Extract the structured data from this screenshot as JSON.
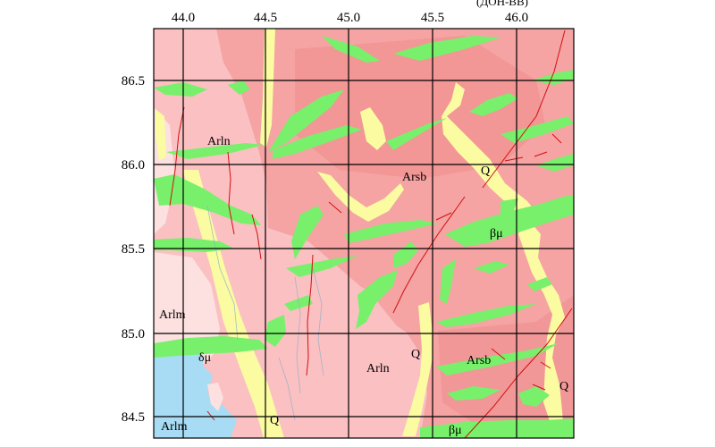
{
  "header": {
    "cropped_text": "(ДОН-ВВ)"
  },
  "axes": {
    "x_ticks": [
      "44.0",
      "44.5",
      "45.0",
      "45.5",
      "46.0"
    ],
    "y_ticks": [
      "86.5",
      "86.0",
      "85.5",
      "85.0",
      "84.5"
    ]
  },
  "units": [
    {
      "id": "arln-nw",
      "text": "Arln"
    },
    {
      "id": "arsb-n",
      "text": "Arsb"
    },
    {
      "id": "q-ne",
      "text": "Q"
    },
    {
      "id": "bu-e",
      "text": "βμ"
    },
    {
      "id": "arlm-w",
      "text": "Arlm"
    },
    {
      "id": "du-sw",
      "text": "δμ"
    },
    {
      "id": "arln-s",
      "text": "Arln"
    },
    {
      "id": "q-s",
      "text": "Q"
    },
    {
      "id": "arsb-se",
      "text": "Arsb"
    },
    {
      "id": "q-se",
      "text": "Q"
    },
    {
      "id": "arlm-sw",
      "text": "Arlm"
    },
    {
      "id": "q-bottom",
      "text": "Q"
    },
    {
      "id": "bu-bottom",
      "text": "βμ"
    }
  ],
  "colors": {
    "arsb": "#f5a3a3",
    "arsb_dark": "#ee8c8c",
    "arln": "#fbc0c2",
    "arlm": "#fde0e0",
    "quaternary": "#fbfba2",
    "basic_dike": "#78f06c",
    "diorite": "#a8dcf4",
    "fault": "#d11010",
    "grid": "#000000"
  }
}
